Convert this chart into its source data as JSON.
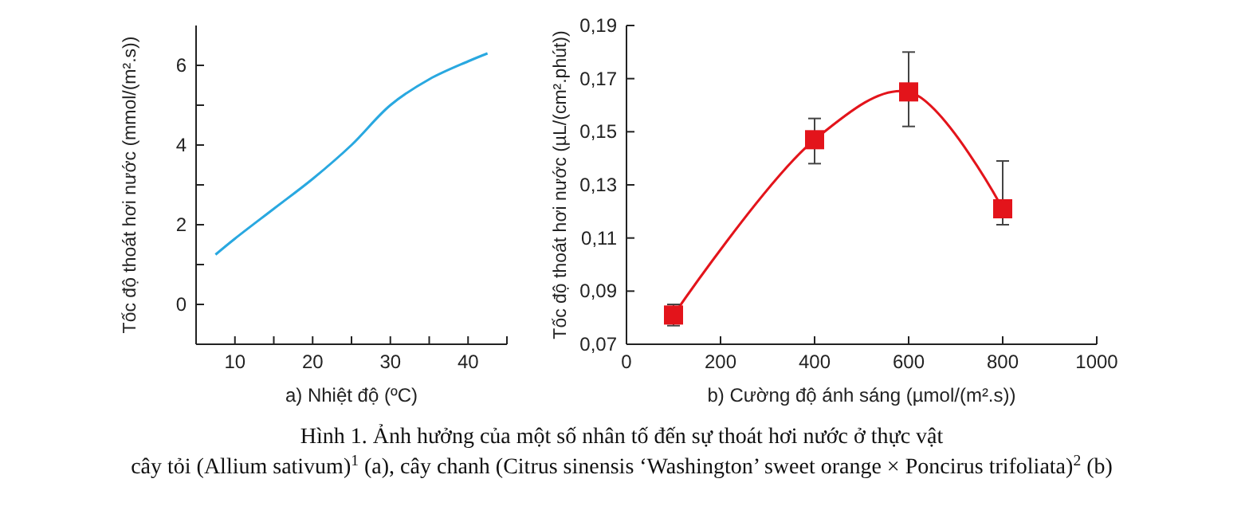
{
  "chart_data": [
    {
      "type": "line",
      "xlabel": "a) Nhiệt độ (ºC)",
      "ylabel": "Tốc độ thoát hơi nước (mmol/(m².s))",
      "x": [
        7.5,
        10,
        15,
        20,
        25,
        30,
        35,
        40,
        42.5
      ],
      "series": [
        {
          "color": "#29a8e0",
          "values": [
            1.25,
            1.65,
            2.4,
            3.15,
            4.0,
            5.0,
            5.65,
            6.1,
            6.3
          ]
        }
      ],
      "xlim": [
        5,
        45
      ],
      "xticks": [
        {
          "value": 5,
          "label": null
        },
        10,
        {
          "value": 15,
          "label": null
        },
        20,
        {
          "value": 25,
          "label": null
        },
        30,
        {
          "value": 35,
          "label": null
        },
        40,
        {
          "value": 45,
          "label": null
        }
      ],
      "ylim": [
        -1,
        7
      ],
      "yticks": [
        0,
        {
          "value": 1,
          "label": null
        },
        2,
        {
          "value": 3,
          "label": null
        },
        4,
        {
          "value": 5,
          "label": null
        },
        6
      ],
      "marker": "none"
    },
    {
      "type": "line",
      "xlabel": "b) Cường độ ánh sáng (µmol/(m².s))",
      "ylabel": "Tốc độ thoát hơi nước (µL/(cm².phút))",
      "x": [
        100,
        400,
        600,
        800
      ],
      "series": [
        {
          "color": "#e3141b",
          "values": [
            0.081,
            0.147,
            0.165,
            0.121
          ],
          "errors": [
            [
              0.077,
              0.085
            ],
            [
              0.138,
              0.155
            ],
            [
              0.152,
              0.18
            ],
            [
              0.115,
              0.139
            ]
          ]
        }
      ],
      "xlim": [
        0,
        1000
      ],
      "xticks": [
        0,
        200,
        400,
        600,
        800,
        1000
      ],
      "ylim": [
        0.07,
        0.19
      ],
      "yticks": [
        {
          "value": 0.07,
          "label": "0,07"
        },
        {
          "value": 0.09,
          "label": "0,09"
        },
        {
          "value": 0.11,
          "label": "0,11"
        },
        {
          "value": 0.13,
          "label": "0,13"
        },
        {
          "value": 0.15,
          "label": "0,15"
        },
        {
          "value": 0.17,
          "label": "0,17"
        },
        {
          "value": 0.19,
          "label": "0,19"
        }
      ],
      "marker": "square",
      "annotations": [
        "Hình 1. Ảnh hưởng của một số nhân tố đến sự thoát hơi nước ở thực vật",
        "cây tỏi (Allium sativum)$^{1}$ (a), cây chanh (Citrus sinensis ‘Washington’ sweet orange × Poncirus trifoliata)$^{2}$ (b)"
      ]
    }
  ]
}
